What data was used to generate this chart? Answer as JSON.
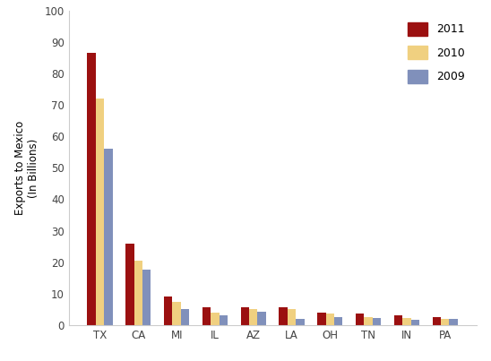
{
  "states": [
    "TX",
    "CA",
    "MI",
    "IL",
    "AZ",
    "LA",
    "OH",
    "TN",
    "IN",
    "PA"
  ],
  "values_2011": [
    86.5,
    26.0,
    9.0,
    5.7,
    5.7,
    5.6,
    4.0,
    3.7,
    3.1,
    2.6
  ],
  "values_2010": [
    72.0,
    20.5,
    7.2,
    3.8,
    5.0,
    5.0,
    3.5,
    2.5,
    2.3,
    1.9
  ],
  "values_2009": [
    56.0,
    17.5,
    5.0,
    3.1,
    4.2,
    2.0,
    2.6,
    2.2,
    1.6,
    1.8
  ],
  "color_2011": "#9b1010",
  "color_2010": "#f0d080",
  "color_2009": "#8090bb",
  "ylabel": "Exports to Mexico\n(In Billions)",
  "ylim": [
    0,
    100
  ],
  "yticks": [
    0,
    10,
    20,
    30,
    40,
    50,
    60,
    70,
    80,
    90,
    100
  ],
  "legend_labels": [
    "2011",
    "2010",
    "2009"
  ],
  "background_color": "#ffffff",
  "bar_width": 0.22
}
